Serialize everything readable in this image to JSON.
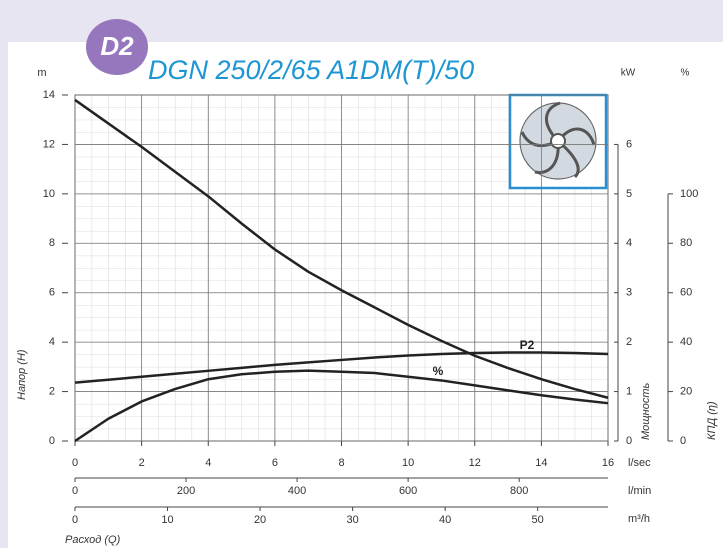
{
  "chart_data": {
    "type": "line",
    "badge": "D2",
    "title": "DGN 250/2/65 A1DM(T)/50",
    "xlabel": "Расход (Q)",
    "xunit": "l/sec",
    "x2unit": "l/min",
    "x3unit": "m³/h",
    "ylabel": "Напор (H)",
    "yunit": "m",
    "y2label": "Мощность",
    "y2unit": "kW",
    "y3label": "КПД (η)",
    "y3unit": "%",
    "x": [
      0,
      1,
      2,
      3,
      4,
      5,
      6,
      7,
      8,
      9,
      10,
      11,
      12,
      13,
      14,
      15,
      16
    ],
    "xlim": [
      0,
      16
    ],
    "xticks": [
      0,
      2,
      4,
      6,
      8,
      10,
      12,
      14,
      16
    ],
    "x2lim": [
      0,
      960
    ],
    "x2ticks": [
      0,
      200,
      400,
      600,
      800
    ],
    "x3lim": [
      0,
      57.6
    ],
    "x3ticks": [
      0,
      10,
      20,
      30,
      40,
      50
    ],
    "ylim": [
      0,
      14
    ],
    "yticks": [
      0,
      2,
      4,
      6,
      8,
      10,
      12,
      14
    ],
    "y2lim": [
      0,
      7
    ],
    "y2ticks": [
      0,
      1,
      2,
      3,
      4,
      5,
      6
    ],
    "y3lim": [
      0,
      140
    ],
    "y3ticks": [
      0,
      20,
      40,
      60,
      80,
      100
    ],
    "grid": true,
    "series": [
      {
        "color": "#222222",
        "axis": "y",
        "values": [
          13.8,
          12.85,
          11.9,
          10.9,
          9.9,
          8.8,
          7.75,
          6.85,
          6.1,
          5.4,
          4.7,
          4.05,
          3.45,
          2.95,
          2.5,
          2.1,
          1.75
        ]
      },
      {
        "name": "P2",
        "color": "#222222",
        "axis": "y2",
        "values": [
          1.18,
          1.24,
          1.3,
          1.36,
          1.42,
          1.48,
          1.54,
          1.59,
          1.64,
          1.69,
          1.73,
          1.76,
          1.78,
          1.79,
          1.79,
          1.78,
          1.76
        ]
      },
      {
        "name": "%",
        "color": "#222222",
        "axis": "y3",
        "values": [
          0,
          9,
          16,
          21,
          25,
          27,
          28,
          28.5,
          28,
          27.5,
          26,
          24.5,
          22.5,
          20.5,
          18.5,
          16.8,
          15.3
        ]
      }
    ]
  }
}
